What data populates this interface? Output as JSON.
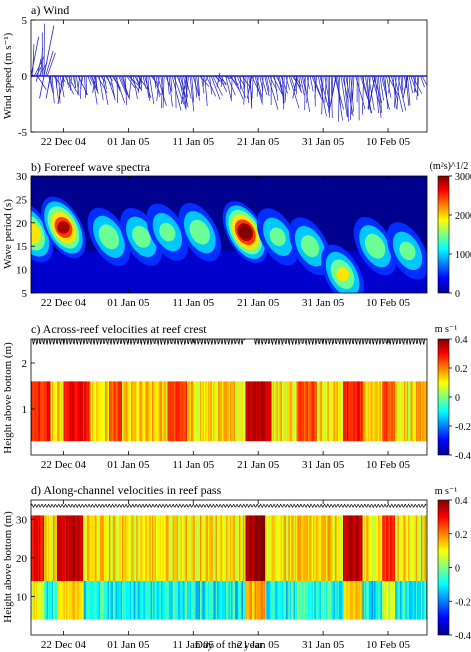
{
  "figure": {
    "xlabel": "Day of the year",
    "date_ticks": [
      "22 Dec 04",
      "01 Jan 05",
      "11 Jan 05",
      "21 Jan 05",
      "31 Jan 05",
      "10 Feb 05"
    ]
  },
  "chart_data": [
    {
      "type": "line",
      "panel": "a",
      "title": "a) Wind",
      "ylabel": "Wind speed (m s⁻¹)",
      "ylim": [
        -5,
        5
      ],
      "yticks": [
        "5",
        "0",
        "-5"
      ],
      "xrange": [
        "2004-12-17",
        "2005-02-15"
      ],
      "series_description": "wind vector sticks, northward component shown",
      "color": "#1f1fc8",
      "series": [
        {
          "x": "2004-12-17",
          "values": [
            3.5,
            -1.0
          ]
        },
        {
          "x": "2004-12-18",
          "values": [
            -0.5,
            1.5
          ]
        },
        {
          "x": "2004-12-19",
          "values": [
            4.5,
            -2.0
          ]
        },
        {
          "x": "2004-12-20",
          "values": [
            -2.0,
            -1.0
          ]
        },
        {
          "x": "2004-12-22",
          "values": [
            -1.5,
            -2.5
          ]
        },
        {
          "x": "2004-12-27",
          "values": [
            -1.5,
            -1.0
          ]
        },
        {
          "x": "2005-01-03",
          "values": [
            -1.5,
            -1.0
          ]
        },
        {
          "x": "2005-01-10",
          "values": [
            -2.5,
            -1.5
          ]
        },
        {
          "x": "2005-01-15",
          "values": [
            -1.0,
            0.3
          ]
        },
        {
          "x": "2005-01-20",
          "values": [
            -2.0,
            -1.5
          ]
        },
        {
          "x": "2005-01-27",
          "values": [
            -2.0,
            -1.5
          ]
        },
        {
          "x": "2005-02-02",
          "values": [
            -3.0,
            -2.5
          ]
        },
        {
          "x": "2005-02-08",
          "values": [
            -3.0,
            -2.0
          ]
        },
        {
          "x": "2005-02-13",
          "values": [
            -2.0,
            -1.5
          ]
        }
      ]
    },
    {
      "type": "heatmap",
      "panel": "b",
      "title": "b) Forereef wave spectra",
      "ylabel": "Wave period (s)",
      "ylim": [
        5,
        30
      ],
      "yticks": [
        "30",
        "25",
        "20",
        "15",
        "10",
        "5"
      ],
      "colorbar": {
        "label": "(m²s)^1/2",
        "range": [
          0,
          3000
        ],
        "ticks": [
          "3000",
          "2000",
          "1000",
          "0"
        ]
      },
      "events": [
        {
          "date": "2004-12-17",
          "period": 18,
          "amplitude": 2100
        },
        {
          "date": "2004-12-22",
          "period": 19,
          "amplitude": 2600
        },
        {
          "date": "2004-12-29",
          "period": 17,
          "amplitude": 1500
        },
        {
          "date": "2005-01-03",
          "period": 17,
          "amplitude": 1400
        },
        {
          "date": "2005-01-07",
          "period": 18,
          "amplitude": 1300
        },
        {
          "date": "2005-01-12",
          "period": 18,
          "amplitude": 1500
        },
        {
          "date": "2005-01-19",
          "period": 18,
          "amplitude": 2900
        },
        {
          "date": "2005-01-24",
          "period": 17,
          "amplitude": 1300
        },
        {
          "date": "2005-01-29",
          "period": 15,
          "amplitude": 1400
        },
        {
          "date": "2005-02-03",
          "period": 9,
          "amplitude": 1700
        },
        {
          "date": "2005-02-08",
          "period": 15,
          "amplitude": 1500
        },
        {
          "date": "2005-02-13",
          "period": 14,
          "amplitude": 1300
        }
      ]
    },
    {
      "type": "heatmap",
      "panel": "c",
      "title": "c) Across-reef velocities at reef crest",
      "ylabel": "Height above bottom (m)",
      "yticks": [
        "2",
        "1"
      ],
      "colorbar": {
        "label": "m s⁻¹",
        "range": [
          -0.4,
          0.4
        ],
        "ticks": [
          "0.4",
          "0.2",
          "0",
          "-0.2",
          "-0.4"
        ]
      },
      "bands": [
        {
          "start": "2004-12-17",
          "end": "2004-12-19",
          "velocity": 0.28
        },
        {
          "start": "2004-12-22",
          "end": "2004-12-25",
          "velocity": 0.3
        },
        {
          "start": "2004-12-29",
          "end": "2004-12-30",
          "velocity": 0.24
        },
        {
          "start": "2005-01-07",
          "end": "2005-01-09",
          "velocity": 0.26
        },
        {
          "start": "2005-01-19",
          "end": "2005-01-22",
          "velocity": 0.36
        },
        {
          "start": "2005-01-27",
          "end": "2005-01-29",
          "velocity": 0.25
        },
        {
          "start": "2005-02-03",
          "end": "2005-02-05",
          "velocity": 0.28
        },
        {
          "start": "2005-02-09",
          "end": "2005-02-10",
          "velocity": 0.24
        }
      ]
    },
    {
      "type": "heatmap",
      "panel": "d",
      "title": "d) Along-channel velocities in reef pass",
      "ylabel": "Height above bottom (m)",
      "ylim": [
        0,
        35
      ],
      "yticks": [
        "30",
        "20",
        "10"
      ],
      "colorbar": {
        "label": "m s⁻¹",
        "range": [
          -0.4,
          0.4
        ],
        "ticks": [
          "0.4",
          "0.2",
          "0",
          "-0.2",
          "-0.4"
        ]
      },
      "bands": [
        {
          "start": "2004-12-17",
          "end": "2004-12-18",
          "velocity": 0.3
        },
        {
          "start": "2004-12-21",
          "end": "2004-12-24",
          "velocity": 0.34
        },
        {
          "start": "2005-01-19",
          "end": "2005-01-21",
          "velocity": 0.38
        },
        {
          "start": "2005-02-03",
          "end": "2005-02-05",
          "velocity": 0.35
        },
        {
          "start": "2005-02-09",
          "end": "2005-02-10",
          "velocity": 0.26
        }
      ]
    }
  ]
}
